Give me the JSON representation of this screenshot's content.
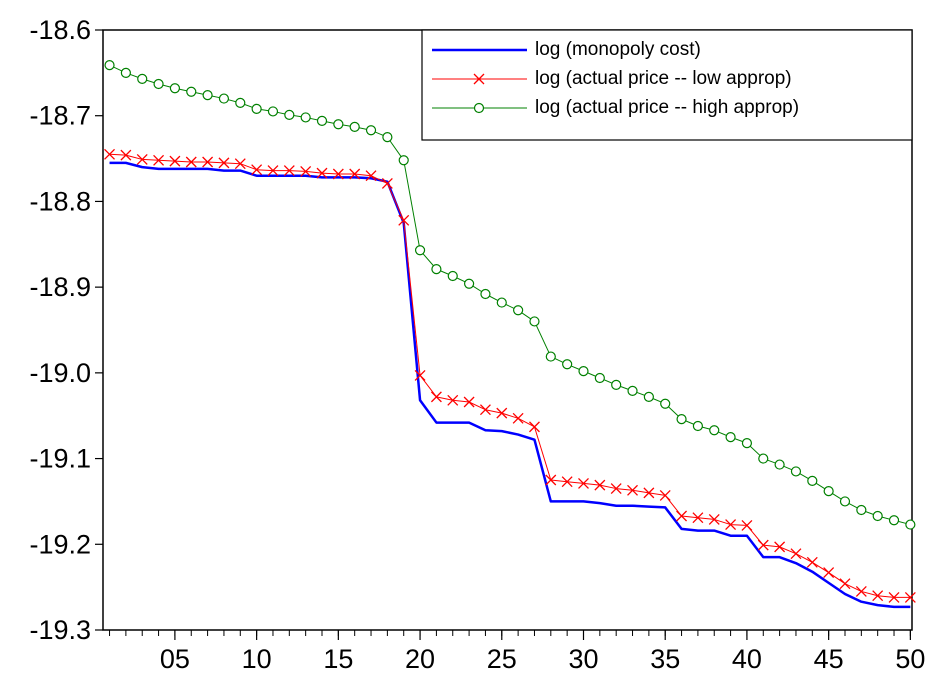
{
  "chart_data": {
    "type": "line",
    "x": [
      1,
      2,
      3,
      4,
      5,
      6,
      7,
      8,
      9,
      10,
      11,
      12,
      13,
      14,
      15,
      16,
      17,
      18,
      19,
      20,
      21,
      22,
      23,
      24,
      25,
      26,
      27,
      28,
      29,
      30,
      31,
      32,
      33,
      34,
      35,
      36,
      37,
      38,
      39,
      40,
      41,
      42,
      43,
      44,
      45,
      46,
      47,
      48,
      49,
      50
    ],
    "series": [
      {
        "name": "log (monopoly cost)",
        "color": "#0000ff",
        "marker": "none",
        "width": 2.5,
        "values": [
          -18.755,
          -18.755,
          -18.76,
          -18.762,
          -18.762,
          -18.762,
          -18.762,
          -18.764,
          -18.764,
          -18.77,
          -18.77,
          -18.77,
          -18.77,
          -18.772,
          -18.772,
          -18.772,
          -18.773,
          -18.777,
          -18.825,
          -19.032,
          -19.058,
          -19.058,
          -19.058,
          -19.067,
          -19.068,
          -19.072,
          -19.078,
          -19.15,
          -19.15,
          -19.15,
          -19.152,
          -19.155,
          -19.155,
          -19.156,
          -19.157,
          -19.182,
          -19.184,
          -19.184,
          -19.19,
          -19.19,
          -19.215,
          -19.215,
          -19.222,
          -19.232,
          -19.245,
          -19.258,
          -19.267,
          -19.271,
          -19.273,
          -19.273
        ]
      },
      {
        "name": "log (actual price -- low approp)",
        "color": "#ff0000",
        "marker": "x",
        "width": 1,
        "values": [
          -18.745,
          -18.746,
          -18.751,
          -18.752,
          -18.753,
          -18.754,
          -18.754,
          -18.755,
          -18.756,
          -18.763,
          -18.764,
          -18.764,
          -18.765,
          -18.767,
          -18.768,
          -18.768,
          -18.77,
          -18.779,
          -18.822,
          -19.003,
          -19.028,
          -19.032,
          -19.034,
          -19.043,
          -19.047,
          -19.053,
          -19.063,
          -19.125,
          -19.127,
          -19.129,
          -19.131,
          -19.135,
          -19.137,
          -19.14,
          -19.143,
          -19.167,
          -19.169,
          -19.171,
          -19.177,
          -19.178,
          -19.201,
          -19.203,
          -19.211,
          -19.221,
          -19.233,
          -19.246,
          -19.255,
          -19.26,
          -19.262,
          -19.262
        ]
      },
      {
        "name": "log (actual price -- high approp)",
        "color": "#008000",
        "marker": "circle",
        "width": 1,
        "values": [
          -18.641,
          -18.65,
          -18.657,
          -18.663,
          -18.668,
          -18.672,
          -18.676,
          -18.68,
          -18.685,
          -18.692,
          -18.695,
          -18.699,
          -18.702,
          -18.706,
          -18.71,
          -18.713,
          -18.717,
          -18.725,
          -18.752,
          -18.857,
          -18.879,
          -18.887,
          -18.896,
          -18.908,
          -18.918,
          -18.927,
          -18.94,
          -18.981,
          -18.99,
          -18.998,
          -19.006,
          -19.014,
          -19.021,
          -19.028,
          -19.036,
          -19.054,
          -19.062,
          -19.067,
          -19.075,
          -19.082,
          -19.1,
          -19.107,
          -19.115,
          -19.126,
          -19.138,
          -19.15,
          -19.16,
          -19.167,
          -19.172,
          -19.177
        ]
      }
    ],
    "xlim": [
      0.6,
      50.1
    ],
    "xticks": [
      {
        "value": 5,
        "label": "05"
      },
      10,
      15,
      20,
      25,
      30,
      35,
      40,
      45,
      50
    ],
    "ylim": [
      -19.3,
      -18.6
    ],
    "yticks": [
      -18.6,
      -18.7,
      -18.8,
      -18.9,
      {
        "value": -19.0,
        "label": "-19.0"
      },
      -19.1,
      -19.2,
      -19.3
    ],
    "grid": false,
    "legend": "top-right"
  }
}
